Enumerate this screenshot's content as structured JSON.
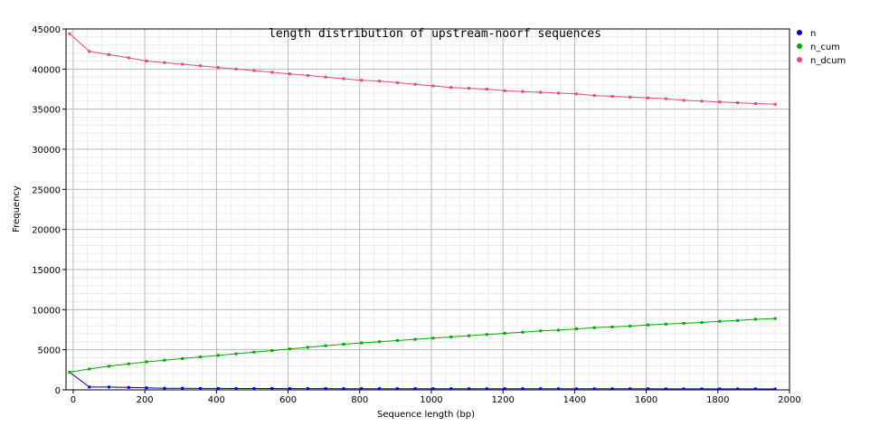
{
  "chart_data": {
    "type": "line",
    "title": "length distribution of upstream-noorf sequences",
    "xlabel": "Sequence length (bp)",
    "ylabel": "Frequency",
    "xlim": [
      -20,
      2000
    ],
    "ylim": [
      0,
      45000
    ],
    "x_ticks": [
      0,
      200,
      400,
      600,
      800,
      1000,
      1200,
      1400,
      1600,
      1800,
      2000
    ],
    "y_ticks": [
      0,
      5000,
      10000,
      15000,
      20000,
      25000,
      30000,
      35000,
      40000,
      45000
    ],
    "grid": true,
    "legend_position": "top-right",
    "x": [
      -10,
      45,
      100,
      155,
      205,
      255,
      305,
      355,
      405,
      455,
      505,
      555,
      605,
      655,
      705,
      755,
      805,
      855,
      905,
      955,
      1005,
      1055,
      1105,
      1155,
      1205,
      1255,
      1305,
      1355,
      1405,
      1455,
      1505,
      1555,
      1605,
      1655,
      1705,
      1755,
      1805,
      1855,
      1905,
      1960
    ],
    "series": [
      {
        "name": "n",
        "color": "#0000cc",
        "values": [
          2200,
          350,
          350,
          300,
          250,
          200,
          200,
          180,
          180,
          170,
          170,
          170,
          160,
          160,
          160,
          150,
          150,
          150,
          150,
          150,
          150,
          150,
          140,
          140,
          140,
          140,
          140,
          130,
          130,
          130,
          130,
          130,
          130,
          120,
          120,
          120,
          120,
          120,
          120,
          110
        ]
      },
      {
        "name": "n_cum",
        "color": "#00aa00",
        "values": [
          2200,
          2600,
          2950,
          3250,
          3500,
          3700,
          3900,
          4100,
          4300,
          4500,
          4700,
          4900,
          5100,
          5300,
          5500,
          5700,
          5850,
          6000,
          6150,
          6300,
          6450,
          6600,
          6750,
          6900,
          7050,
          7200,
          7350,
          7450,
          7600,
          7750,
          7850,
          7950,
          8100,
          8200,
          8300,
          8400,
          8550,
          8650,
          8800,
          8900
        ]
      },
      {
        "name": "n_dcum",
        "color": "#e8487a",
        "values": [
          44400,
          42200,
          41800,
          41400,
          41000,
          40800,
          40600,
          40400,
          40200,
          40000,
          39800,
          39600,
          39400,
          39200,
          39000,
          38800,
          38600,
          38500,
          38300,
          38100,
          37900,
          37700,
          37600,
          37500,
          37300,
          37200,
          37100,
          37000,
          36900,
          36700,
          36600,
          36500,
          36400,
          36300,
          36100,
          36000,
          35900,
          35800,
          35700,
          35600
        ]
      }
    ]
  }
}
